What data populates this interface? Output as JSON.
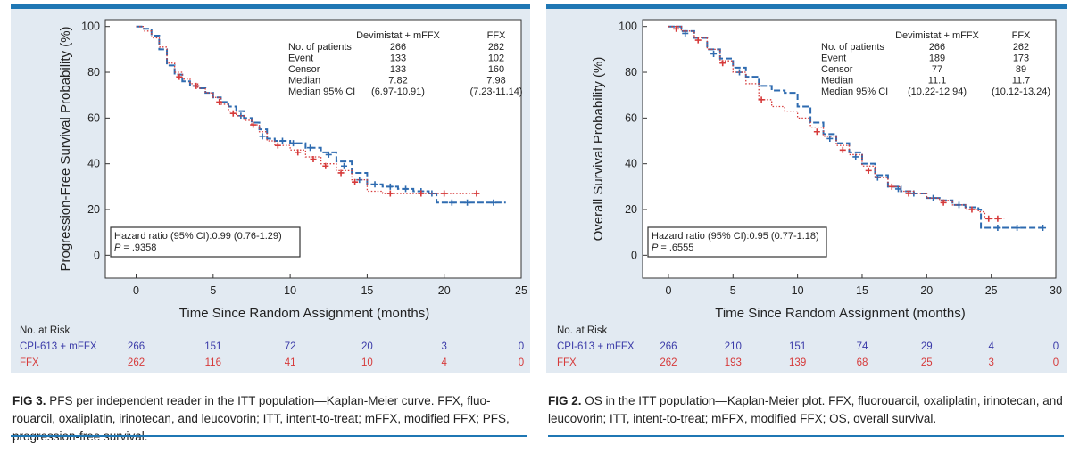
{
  "figures": [
    {
      "id": "fig3",
      "caption_label": "FIG 3.",
      "caption_text": " PFS per independent reader in the ITT population—Kaplan-Meier curve. FFX, fluo-rouarcil, oxaliplatin, irinotecan, and leucovorin; ITT, intent-to-treat; mFFX, modified FFX; PFS, progression-free survival.",
      "chart_data": {
        "type": "line",
        "subtype": "kaplan-meier",
        "ylabel": "Progression-Free Survival Probability (%)",
        "xlabel": "Time Since Random Assignment (months)",
        "xlim": [
          -2,
          25
        ],
        "ylim": [
          -10,
          103
        ],
        "xticks": [
          0,
          5,
          10,
          15,
          20,
          25
        ],
        "yticks": [
          0,
          20,
          40,
          60,
          80,
          100
        ],
        "series": [
          {
            "name": "Devimistat + mFFX",
            "color": "#2e6bb0",
            "style": "dashed",
            "points": [
              [
                0,
                100
              ],
              [
                0.5,
                99
              ],
              [
                1,
                96
              ],
              [
                1.5,
                90
              ],
              [
                2,
                83
              ],
              [
                2.5,
                79
              ],
              [
                3,
                76
              ],
              [
                3.5,
                74
              ],
              [
                4,
                73
              ],
              [
                4.5,
                71
              ],
              [
                5,
                69
              ],
              [
                5.5,
                67
              ],
              [
                6,
                65
              ],
              [
                6.5,
                63
              ],
              [
                7,
                60
              ],
              [
                7.5,
                58
              ],
              [
                8,
                55
              ],
              [
                8.5,
                51
              ],
              [
                9,
                50
              ],
              [
                10,
                49
              ],
              [
                11,
                47
              ],
              [
                12,
                45
              ],
              [
                13,
                41
              ],
              [
                14,
                36
              ],
              [
                15,
                31
              ],
              [
                16,
                30
              ],
              [
                17,
                29
              ],
              [
                18,
                28
              ],
              [
                19,
                27
              ],
              [
                19.5,
                23
              ],
              [
                22,
                23
              ],
              [
                24,
                23
              ]
            ],
            "censor": [
              [
                6.8,
                61
              ],
              [
                8.2,
                52
              ],
              [
                9.5,
                50
              ],
              [
                10.2,
                49
              ],
              [
                11.3,
                47
              ],
              [
                12.5,
                44
              ],
              [
                13.5,
                39
              ],
              [
                14.5,
                33
              ],
              [
                15.5,
                31
              ],
              [
                16.5,
                30
              ],
              [
                17.5,
                29
              ],
              [
                18.5,
                28
              ],
              [
                19.2,
                27
              ],
              [
                20.5,
                23
              ],
              [
                21.5,
                23
              ],
              [
                23.2,
                23
              ]
            ]
          },
          {
            "name": "FFX",
            "color": "#d63a3a",
            "style": "dotted",
            "points": [
              [
                0,
                100
              ],
              [
                0.5,
                98
              ],
              [
                1,
                95
              ],
              [
                1.5,
                91
              ],
              [
                2,
                84
              ],
              [
                2.5,
                80
              ],
              [
                3,
                77
              ],
              [
                3.5,
                75
              ],
              [
                4,
                73
              ],
              [
                4.5,
                71
              ],
              [
                5,
                69
              ],
              [
                5.5,
                66
              ],
              [
                6,
                63
              ],
              [
                6.5,
                61
              ],
              [
                7,
                59
              ],
              [
                7.5,
                57
              ],
              [
                8,
                54
              ],
              [
                8.5,
                50
              ],
              [
                9,
                48
              ],
              [
                10,
                46
              ],
              [
                11,
                43
              ],
              [
                12,
                40
              ],
              [
                13,
                37
              ],
              [
                14,
                33
              ],
              [
                15,
                28
              ],
              [
                16,
                27
              ],
              [
                17,
                27
              ],
              [
                18,
                27
              ],
              [
                19,
                27
              ],
              [
                20,
                27
              ],
              [
                21,
                27
              ],
              [
                22,
                27
              ]
            ],
            "censor": [
              [
                2.8,
                78
              ],
              [
                3.9,
                74
              ],
              [
                5.4,
                67
              ],
              [
                6.3,
                62
              ],
              [
                7.6,
                57
              ],
              [
                9.2,
                48
              ],
              [
                10.5,
                45
              ],
              [
                11.5,
                42
              ],
              [
                12.3,
                39
              ],
              [
                13.3,
                36
              ],
              [
                14.2,
                32
              ],
              [
                16.5,
                27
              ],
              [
                18.5,
                27
              ],
              [
                20,
                27
              ],
              [
                22.1,
                27
              ]
            ]
          }
        ],
        "stats_table": {
          "headers": [
            "",
            "Devimistat + mFFX",
            "FFX"
          ],
          "rows": [
            [
              "No. of patients",
              "266",
              "262"
            ],
            [
              "Event",
              "133",
              "102"
            ],
            [
              "Censor",
              "133",
              "160"
            ],
            [
              "Median",
              "7.82",
              "7.98"
            ],
            [
              "Median 95% CI",
              "(6.97-10.91)",
              "(7.23-11.14)"
            ]
          ]
        },
        "hazard_label": "Hazard ratio (95% CI):",
        "hazard_value": "0.99 (0.76-1.29)",
        "p_label": "P",
        "p_value": " = .9358",
        "risk_table": {
          "title": "No. at Risk",
          "rows": [
            {
              "label": "CPI-613 + mFFX",
              "color": "#3a3aa8",
              "values": [
                "266",
                "151",
                "72",
                "20",
                "3",
                "0"
              ]
            },
            {
              "label": "FFX",
              "color": "#d63a3a",
              "values": [
                "262",
                "116",
                "41",
                "10",
                "4",
                "0"
              ]
            }
          ]
        }
      }
    },
    {
      "id": "fig2",
      "caption_label": "FIG 2.",
      "caption_text": " OS in the ITT population—Kaplan-Meier plot. FFX, fluorouarcil, oxaliplatin, irinotecan, and leucovorin; ITT, intent-to-treat; mFFX, modified FFX; OS, overall survival.",
      "chart_data": {
        "type": "line",
        "subtype": "kaplan-meier",
        "ylabel": "Overall Survival Probability (%)",
        "xlabel": "Time Since Random Assignment (months)",
        "xlim": [
          -2,
          30
        ],
        "ylim": [
          -10,
          103
        ],
        "xticks": [
          0,
          5,
          10,
          15,
          20,
          25,
          30
        ],
        "yticks": [
          0,
          20,
          40,
          60,
          80,
          100
        ],
        "series": [
          {
            "name": "Devimistat + mFFX",
            "color": "#2e6bb0",
            "style": "dashed",
            "points": [
              [
                0,
                100
              ],
              [
                1,
                98
              ],
              [
                2,
                95
              ],
              [
                3,
                90
              ],
              [
                4,
                86
              ],
              [
                5,
                82
              ],
              [
                6,
                78
              ],
              [
                7,
                74
              ],
              [
                8,
                72
              ],
              [
                9,
                71
              ],
              [
                10,
                65
              ],
              [
                11,
                58
              ],
              [
                12,
                53
              ],
              [
                13,
                49
              ],
              [
                14,
                45
              ],
              [
                15,
                40
              ],
              [
                16,
                35
              ],
              [
                17,
                30
              ],
              [
                18,
                28
              ],
              [
                19,
                27
              ],
              [
                20,
                25
              ],
              [
                21,
                24
              ],
              [
                22,
                22
              ],
              [
                23,
                21
              ],
              [
                24,
                20
              ],
              [
                24.2,
                12
              ],
              [
                29,
                12
              ]
            ],
            "censor": [
              [
                1.3,
                97
              ],
              [
                3.5,
                88
              ],
              [
                5.5,
                80
              ],
              [
                12.5,
                51
              ],
              [
                14.5,
                43
              ],
              [
                16.2,
                34
              ],
              [
                17.8,
                29
              ],
              [
                19,
                27
              ],
              [
                20.5,
                25
              ],
              [
                22.5,
                22
              ],
              [
                25.5,
                12
              ],
              [
                27,
                12
              ],
              [
                29,
                12
              ]
            ]
          },
          {
            "name": "FFX",
            "color": "#d63a3a",
            "style": "dotted",
            "points": [
              [
                0,
                100
              ],
              [
                1,
                98
              ],
              [
                2,
                95
              ],
              [
                3,
                90
              ],
              [
                4,
                85
              ],
              [
                5,
                80
              ],
              [
                6,
                75
              ],
              [
                7,
                68
              ],
              [
                8,
                65
              ],
              [
                9,
                63
              ],
              [
                10,
                60
              ],
              [
                11,
                56
              ],
              [
                12,
                52
              ],
              [
                13,
                48
              ],
              [
                14,
                44
              ],
              [
                15,
                39
              ],
              [
                16,
                34
              ],
              [
                17,
                30
              ],
              [
                18,
                28
              ],
              [
                19,
                27
              ],
              [
                20,
                25
              ],
              [
                21,
                24
              ],
              [
                22,
                22
              ],
              [
                23,
                20
              ],
              [
                24,
                19
              ],
              [
                24.5,
                16
              ],
              [
                26,
                16
              ]
            ],
            "censor": [
              [
                0.6,
                99
              ],
              [
                2.3,
                94
              ],
              [
                4.2,
                84
              ],
              [
                7.2,
                68
              ],
              [
                11.5,
                54
              ],
              [
                13.5,
                46
              ],
              [
                15.5,
                37
              ],
              [
                17.3,
                30
              ],
              [
                18.6,
                27
              ],
              [
                21.3,
                23
              ],
              [
                23.5,
                20
              ],
              [
                24.8,
                16
              ],
              [
                25.5,
                16
              ]
            ]
          }
        ],
        "stats_table": {
          "headers": [
            "",
            "Devimistat + mFFX",
            "FFX"
          ],
          "rows": [
            [
              "No. of patients",
              "266",
              "262"
            ],
            [
              "Event",
              "189",
              "173"
            ],
            [
              "Censor",
              "77",
              "89"
            ],
            [
              "Median",
              "11.1",
              "11.7"
            ],
            [
              "Median 95% CI",
              "(10.22-12.94)",
              "(10.12-13.24)"
            ]
          ]
        },
        "hazard_label": "Hazard ratio (95% CI):",
        "hazard_value": "0.95 (0.77-1.18)",
        "p_label": "P",
        "p_value": " = .6555",
        "risk_table": {
          "title": "No. at Risk",
          "rows": [
            {
              "label": "CPI-613 + mFFX",
              "color": "#3a3aa8",
              "values": [
                "266",
                "210",
                "151",
                "74",
                "29",
                "4",
                "0"
              ]
            },
            {
              "label": "FFX",
              "color": "#d63a3a",
              "values": [
                "262",
                "193",
                "139",
                "68",
                "25",
                "3",
                "0"
              ]
            }
          ]
        }
      }
    }
  ]
}
